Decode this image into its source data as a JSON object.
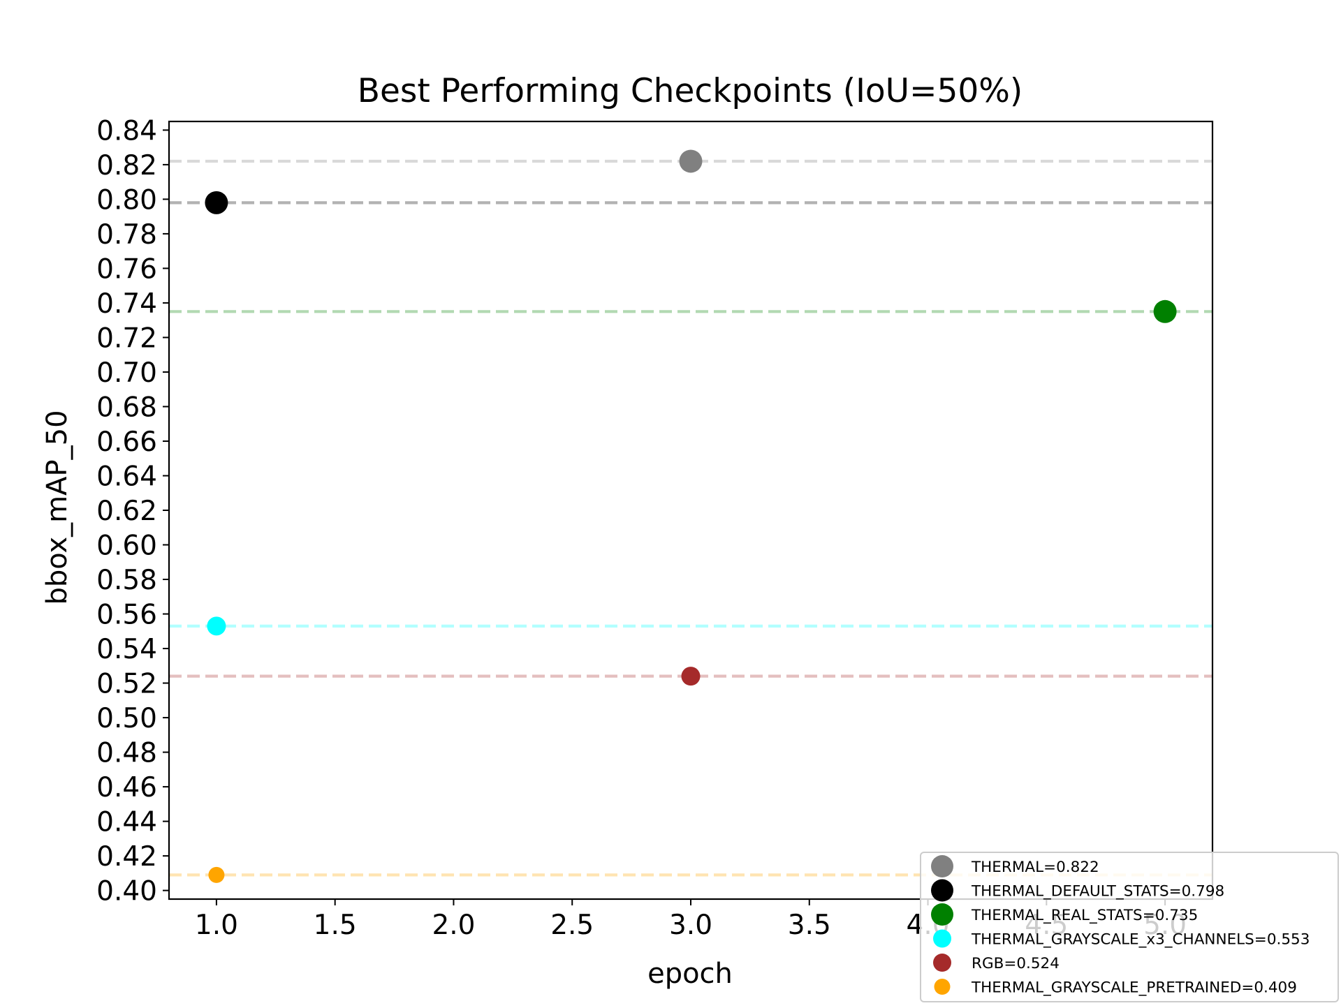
{
  "chart_data": {
    "type": "scatter",
    "title": "Best Performing Checkpoints (IoU=50%)",
    "xlabel": "epoch",
    "ylabel": "bbox_mAP_50",
    "xlim": [
      0.8,
      5.2
    ],
    "ylim": [
      0.395,
      0.845
    ],
    "xticks": [
      1.0,
      1.5,
      2.0,
      2.5,
      3.0,
      3.5,
      4.0,
      4.5,
      5.0
    ],
    "xtick_labels": [
      "1.0",
      "1.5",
      "2.0",
      "2.5",
      "3.0",
      "3.5",
      "4.0",
      "4.5",
      "5.0"
    ],
    "yticks": [
      0.4,
      0.42,
      0.44,
      0.46,
      0.48,
      0.5,
      0.52,
      0.54,
      0.56,
      0.58,
      0.6,
      0.62,
      0.64,
      0.66,
      0.68,
      0.7,
      0.72,
      0.74,
      0.76,
      0.78,
      0.8,
      0.82,
      0.84
    ],
    "ytick_labels": [
      "0.40",
      "0.42",
      "0.44",
      "0.46",
      "0.48",
      "0.50",
      "0.52",
      "0.54",
      "0.56",
      "0.58",
      "0.60",
      "0.62",
      "0.64",
      "0.66",
      "0.68",
      "0.70",
      "0.72",
      "0.74",
      "0.76",
      "0.78",
      "0.80",
      "0.82",
      "0.84"
    ],
    "grid": false,
    "legend_placement": "bottom-right",
    "series": [
      {
        "name": "THERMAL=0.822",
        "color": "#808080",
        "x": 3,
        "y": 0.822,
        "reference_line": 0.822,
        "marker_size": "large"
      },
      {
        "name": "THERMAL_DEFAULT_STATS=0.798",
        "color": "#000000",
        "x": 1,
        "y": 0.798,
        "reference_line": 0.798,
        "marker_size": "large"
      },
      {
        "name": "THERMAL_REAL_STATS=0.735",
        "color": "#008000",
        "x": 5,
        "y": 0.735,
        "reference_line": 0.735,
        "marker_size": "large"
      },
      {
        "name": "THERMAL_GRAYSCALE_x3_CHANNELS=0.553",
        "color": "#00ffff",
        "x": 1,
        "y": 0.553,
        "reference_line": 0.553,
        "marker_size": "medium"
      },
      {
        "name": "RGB=0.524",
        "color": "#a52a2a",
        "x": 3,
        "y": 0.524,
        "reference_line": 0.524,
        "marker_size": "medium"
      },
      {
        "name": "THERMAL_GRAYSCALE_PRETRAINED=0.409",
        "color": "#ffa500",
        "x": 1,
        "y": 0.409,
        "reference_line": 0.409,
        "marker_size": "small"
      }
    ]
  }
}
